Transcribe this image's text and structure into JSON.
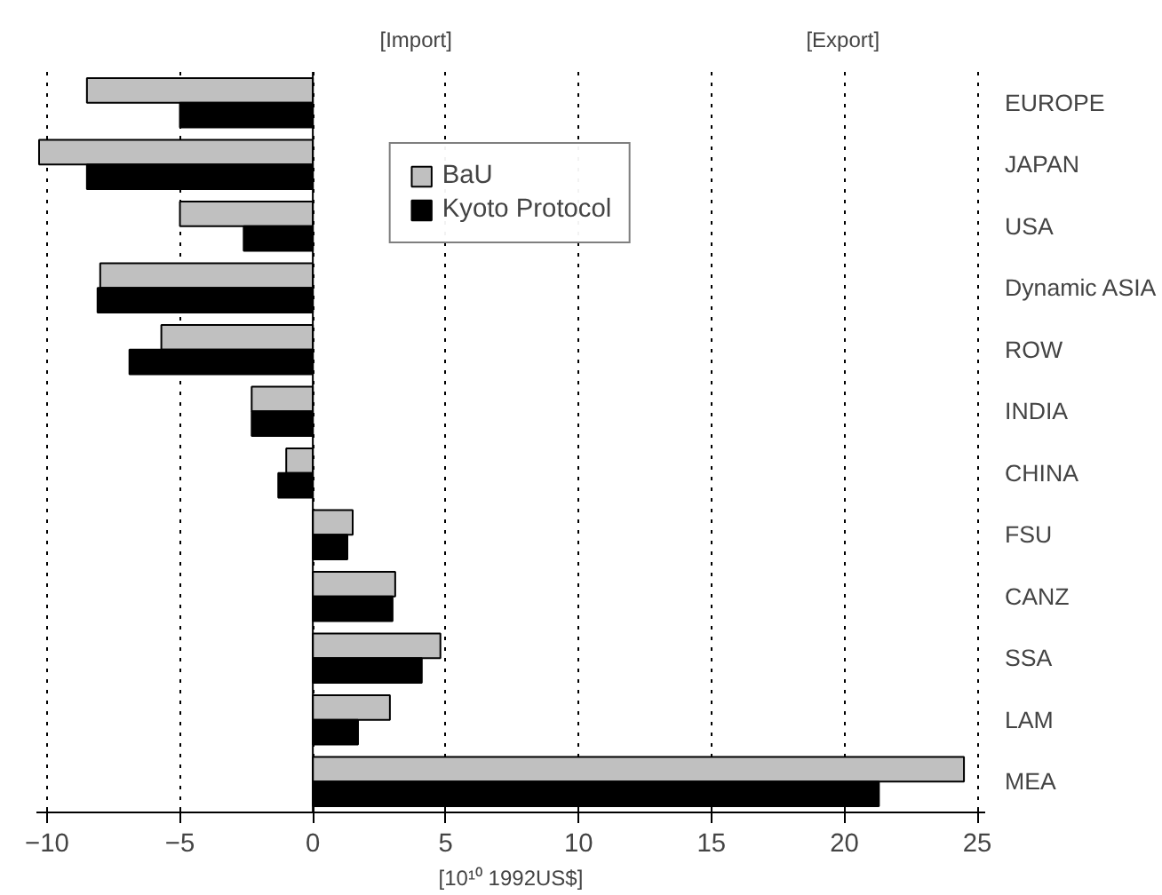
{
  "chart_data": {
    "type": "bar",
    "orientation": "horizontal",
    "xlabel": "[10¹⁰ 1992US$]",
    "annotations": [
      "[Import]",
      "[Export]"
    ],
    "categories": [
      "EUROPE",
      "JAPAN",
      "USA",
      "Dynamic ASIA",
      "ROW",
      "INDIA",
      "CHINA",
      "FSU",
      "CANZ",
      "SSA",
      "LAM",
      "MEA"
    ],
    "series": [
      {
        "name": "BaU",
        "color": "#c0c0c0",
        "values": [
          -8.5,
          -10.3,
          -5.0,
          -8.0,
          -5.7,
          -2.3,
          -1.0,
          1.5,
          3.1,
          4.8,
          2.9,
          24.5
        ]
      },
      {
        "name": "Kyoto Protocol",
        "color": "#000000",
        "values": [
          -5.0,
          -8.5,
          -2.6,
          -8.1,
          -6.9,
          -2.3,
          -1.3,
          1.3,
          3.0,
          4.1,
          1.7,
          21.3
        ]
      }
    ],
    "xlim": [
      -10.4,
      25.3
    ],
    "xticks": [
      -10,
      -5,
      0,
      5,
      10,
      15,
      20,
      25
    ],
    "grid": "x",
    "legend": "top"
  }
}
